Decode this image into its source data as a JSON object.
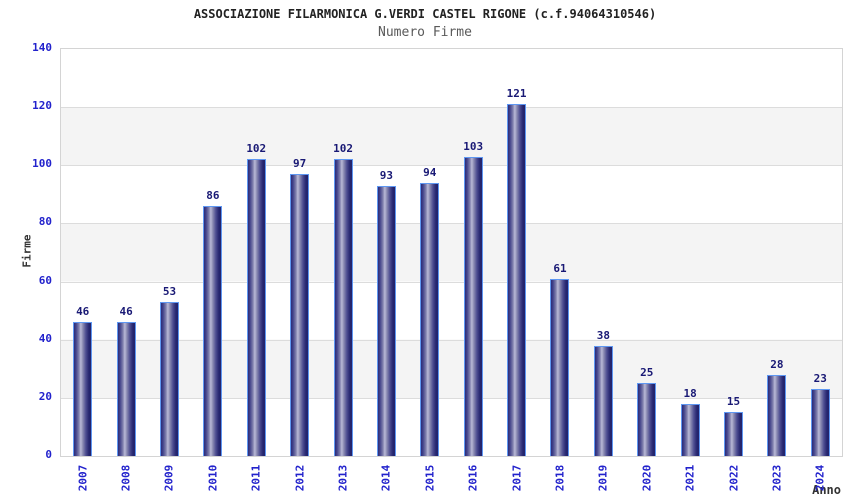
{
  "chart_data": {
    "type": "bar",
    "title": "ASSOCIAZIONE FILARMONICA G.VERDI CASTEL RIGONE (c.f.94064310546)",
    "subtitle": "Numero Firme",
    "xlabel": "Anno",
    "ylabel": "Firme",
    "categories": [
      "2007",
      "2008",
      "2009",
      "2010",
      "2011",
      "2012",
      "2013",
      "2014",
      "2015",
      "2016",
      "2017",
      "2018",
      "2019",
      "2020",
      "2021",
      "2022",
      "2023",
      "2024"
    ],
    "values": [
      46,
      46,
      53,
      86,
      102,
      97,
      102,
      93,
      94,
      103,
      121,
      61,
      38,
      25,
      18,
      15,
      28,
      23
    ],
    "yticks": [
      0,
      20,
      40,
      60,
      80,
      100,
      120,
      140
    ],
    "ylim": [
      0,
      140
    ],
    "grid": "horizontal-alternating-bands",
    "legend": "none",
    "bar_labels_shown": true,
    "colors": {
      "bar_dark": "#23236b",
      "bar_highlight": "#b9b9d6",
      "bar_border": "#5e97f2",
      "axis_tick_label": "#2222cc",
      "bar_value_label": "#191975",
      "band_gray": "#f4f4f4",
      "gridline": "#dcdcdc",
      "plot_frame": "#d4d4d4",
      "title_text": "#222222",
      "subtitle_text": "#5a5a5a"
    }
  }
}
